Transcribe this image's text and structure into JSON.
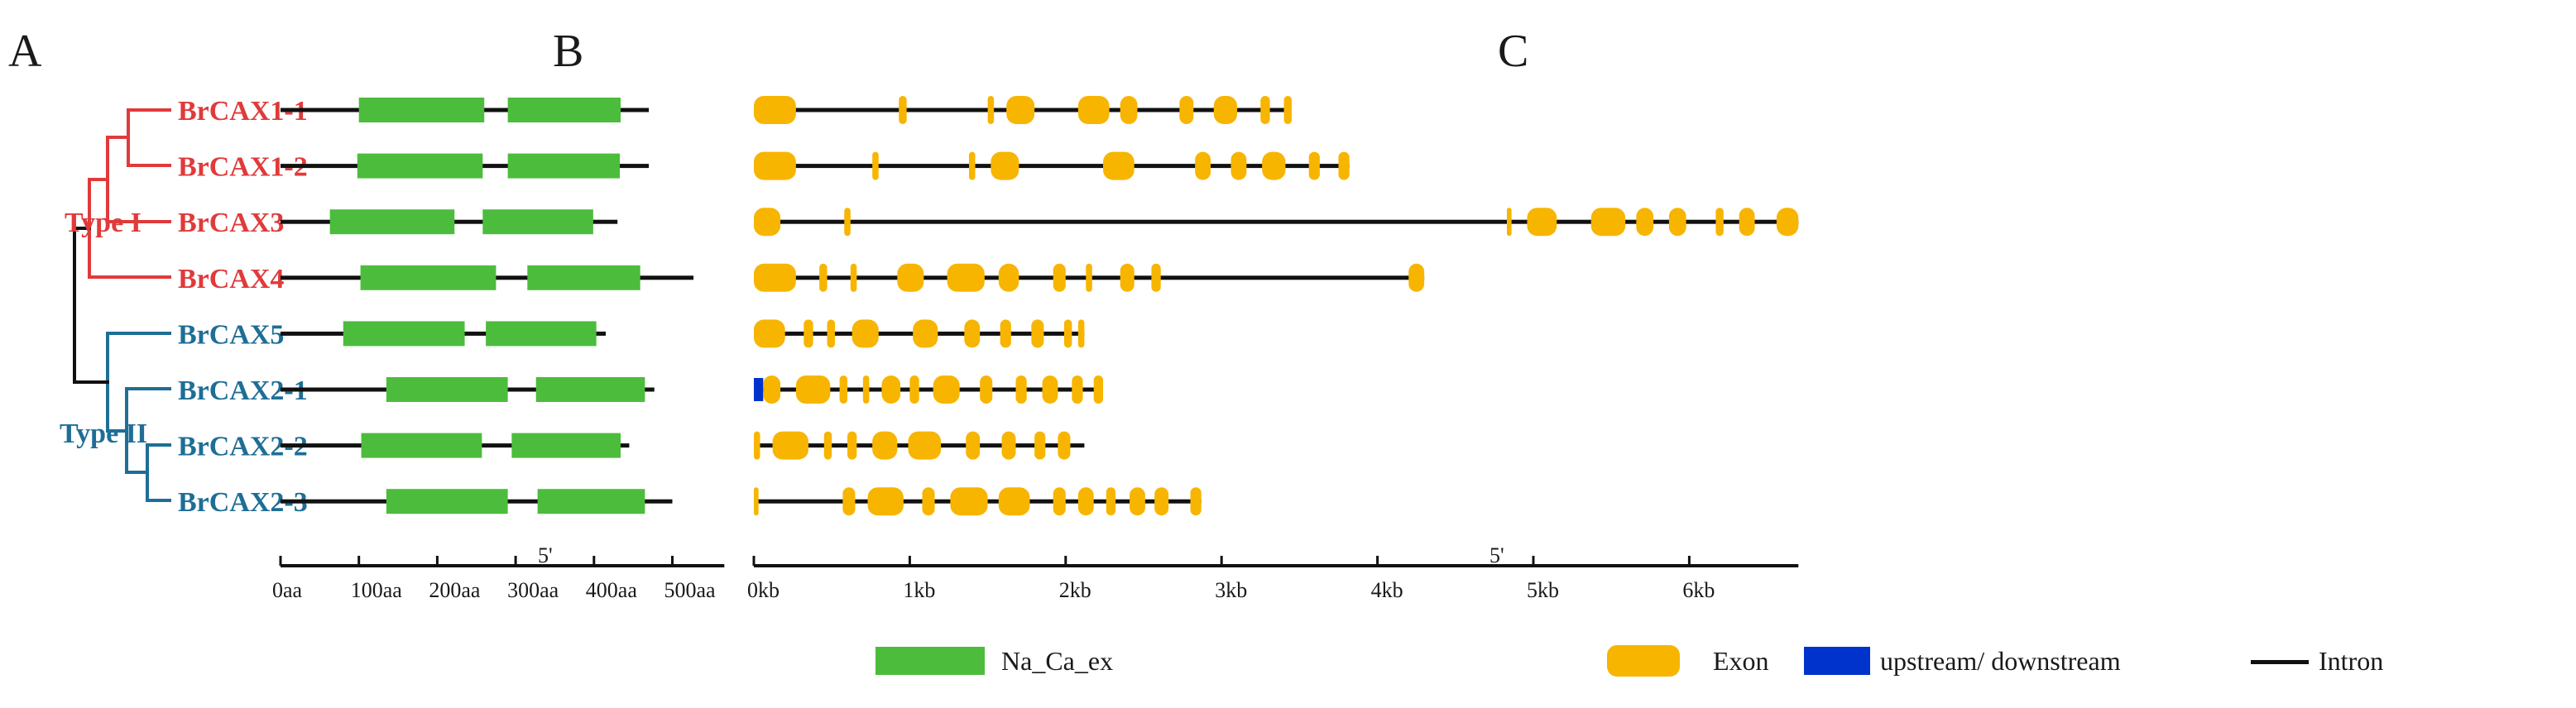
{
  "panels": {
    "a": "A",
    "b": "B",
    "c": "C"
  },
  "colors": {
    "type1": "#e03a3a",
    "type2": "#1e6e96",
    "domain": "#4cbc3c",
    "exon": "#f7b500",
    "utr": "#0033cc",
    "line": "#111111"
  },
  "tree": {
    "genes": [
      "BrCAX1-1",
      "BrCAX1-2",
      "BrCAX3",
      "BrCAX4",
      "BrCAX5",
      "BrCAX2-1",
      "BrCAX2-2",
      "BrCAX2-3"
    ],
    "types": [
      {
        "label": "Type I",
        "group": "type1"
      },
      {
        "label": "Type II",
        "group": "type2"
      }
    ]
  },
  "protein": {
    "prime": "5'",
    "axis_ticks": [
      "0aa",
      "100aa",
      "200aa",
      "300aa",
      "400aa",
      "500aa"
    ],
    "axis_max": 560,
    "legend": "Na_Ca_ex",
    "proteins": [
      {
        "length": 470,
        "domains": [
          [
            100,
            260
          ],
          [
            290,
            434
          ]
        ]
      },
      {
        "length": 470,
        "domains": [
          [
            98,
            258
          ],
          [
            290,
            433
          ]
        ]
      },
      {
        "length": 430,
        "domains": [
          [
            63,
            222
          ],
          [
            258,
            399
          ]
        ]
      },
      {
        "length": 527,
        "domains": [
          [
            102,
            275
          ],
          [
            315,
            459
          ]
        ]
      },
      {
        "length": 415,
        "domains": [
          [
            80,
            235
          ],
          [
            262,
            403
          ]
        ]
      },
      {
        "length": 477,
        "domains": [
          [
            135,
            290
          ],
          [
            326,
            465
          ]
        ]
      },
      {
        "length": 445,
        "domains": [
          [
            103,
            257
          ],
          [
            295,
            434
          ]
        ]
      },
      {
        "length": 500,
        "domains": [
          [
            135,
            290
          ],
          [
            328,
            465
          ]
        ]
      }
    ]
  },
  "gene_structure": {
    "prime": "5'",
    "axis_ticks": [
      "0kb",
      "1kb",
      "2kb",
      "3kb",
      "4kb",
      "5kb",
      "6kb"
    ],
    "axis_max": 6.7,
    "legend": {
      "exon": "Exon",
      "utr": "upstream/ downstream",
      "intron": "Intron"
    },
    "genes": [
      {
        "length": 3.45,
        "exons": [
          [
            0.0,
            0.27
          ],
          [
            0.93,
            0.98
          ],
          [
            1.5,
            1.54
          ],
          [
            1.62,
            1.8
          ],
          [
            2.08,
            2.28
          ],
          [
            2.35,
            2.46
          ],
          [
            2.73,
            2.82
          ],
          [
            2.95,
            3.1
          ],
          [
            3.25,
            3.31
          ],
          [
            3.4,
            3.45
          ]
        ],
        "utr": []
      },
      {
        "length": 3.82,
        "exons": [
          [
            0.0,
            0.27
          ],
          [
            0.76,
            0.8
          ],
          [
            1.38,
            1.42
          ],
          [
            1.52,
            1.7
          ],
          [
            2.24,
            2.44
          ],
          [
            2.83,
            2.93
          ],
          [
            3.06,
            3.16
          ],
          [
            3.26,
            3.41
          ],
          [
            3.56,
            3.63
          ],
          [
            3.75,
            3.82
          ]
        ],
        "utr": []
      },
      {
        "length": 6.7,
        "exons": [
          [
            0.0,
            0.17
          ],
          [
            0.58,
            0.62
          ],
          [
            4.83,
            4.86
          ],
          [
            4.96,
            5.15
          ],
          [
            5.37,
            5.59
          ],
          [
            5.66,
            5.77
          ],
          [
            5.87,
            5.98
          ],
          [
            6.17,
            6.22
          ],
          [
            6.32,
            6.42
          ],
          [
            6.56,
            6.7
          ]
        ],
        "utr": []
      },
      {
        "length": 4.3,
        "exons": [
          [
            0.0,
            0.27
          ],
          [
            0.42,
            0.47
          ],
          [
            0.62,
            0.66
          ],
          [
            0.92,
            1.09
          ],
          [
            1.24,
            1.48
          ],
          [
            1.57,
            1.7
          ],
          [
            1.92,
            2.0
          ],
          [
            2.13,
            2.17
          ],
          [
            2.35,
            2.44
          ],
          [
            2.55,
            2.61
          ],
          [
            4.2,
            4.3
          ]
        ],
        "utr": []
      },
      {
        "length": 2.12,
        "exons": [
          [
            0.0,
            0.2
          ],
          [
            0.32,
            0.38
          ],
          [
            0.47,
            0.52
          ],
          [
            0.63,
            0.8
          ],
          [
            1.02,
            1.18
          ],
          [
            1.35,
            1.45
          ],
          [
            1.58,
            1.65
          ],
          [
            1.78,
            1.86
          ],
          [
            1.99,
            2.04
          ],
          [
            2.08,
            2.12
          ]
        ],
        "utr": []
      },
      {
        "length": 2.24,
        "exons": [
          [
            0.06,
            0.17
          ],
          [
            0.27,
            0.49
          ],
          [
            0.55,
            0.6
          ],
          [
            0.7,
            0.74
          ],
          [
            0.82,
            0.94
          ],
          [
            1.0,
            1.06
          ],
          [
            1.15,
            1.32
          ],
          [
            1.45,
            1.53
          ],
          [
            1.68,
            1.75
          ],
          [
            1.85,
            1.95
          ],
          [
            2.04,
            2.11
          ],
          [
            2.18,
            2.24
          ]
        ],
        "utr": [
          [
            0.0,
            0.06
          ]
        ]
      },
      {
        "length": 2.12,
        "exons": [
          [
            0.0,
            0.04
          ],
          [
            0.12,
            0.35
          ],
          [
            0.45,
            0.5
          ],
          [
            0.6,
            0.66
          ],
          [
            0.76,
            0.92
          ],
          [
            0.99,
            1.2
          ],
          [
            1.36,
            1.45
          ],
          [
            1.59,
            1.68
          ],
          [
            1.8,
            1.87
          ],
          [
            1.95,
            2.03
          ]
        ],
        "utr": []
      },
      {
        "length": 2.87,
        "exons": [
          [
            0.0,
            0.03
          ],
          [
            0.57,
            0.65
          ],
          [
            0.73,
            0.96
          ],
          [
            1.08,
            1.16
          ],
          [
            1.26,
            1.5
          ],
          [
            1.57,
            1.77
          ],
          [
            1.92,
            2.0
          ],
          [
            2.08,
            2.18
          ],
          [
            2.26,
            2.32
          ],
          [
            2.41,
            2.51
          ],
          [
            2.57,
            2.66
          ],
          [
            2.8,
            2.87
          ]
        ],
        "utr": []
      }
    ]
  }
}
